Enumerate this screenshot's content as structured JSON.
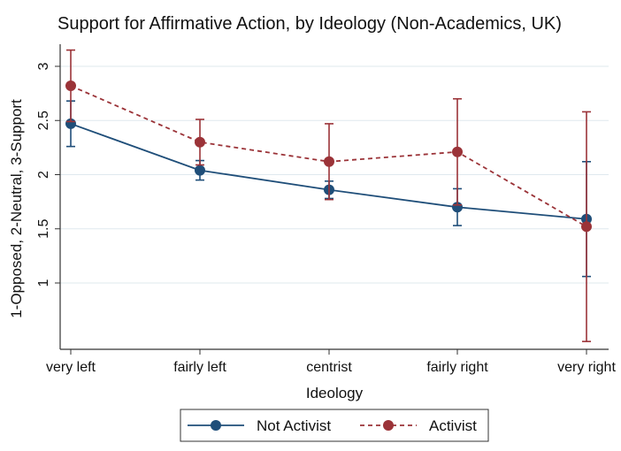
{
  "chart_data": {
    "type": "line",
    "title": "Support for Affirmative Action, by Ideology (Non-Academics, UK)",
    "xlabel": "Ideology",
    "ylabel": "1-Opposed, 2-Neutral, 3-Support",
    "categories": [
      "very left",
      "fairly left",
      "centrist",
      "fairly right",
      "very right"
    ],
    "y_ticks": [
      1,
      1.5,
      2,
      2.5,
      3
    ],
    "y_tick_labels": [
      "1",
      "1.5",
      "2",
      "2.5",
      "3"
    ],
    "ylim": [
      0.4,
      3.2
    ],
    "grid": true,
    "legend_position": "bottom",
    "series": [
      {
        "name": "Not Activist",
        "color": "#1f4e79",
        "line_style": "solid",
        "values": [
          2.47,
          2.04,
          1.86,
          1.7,
          1.59
        ],
        "ci_low": [
          2.26,
          1.95,
          1.78,
          1.53,
          1.06
        ],
        "ci_high": [
          2.68,
          2.13,
          1.94,
          1.87,
          2.12
        ]
      },
      {
        "name": "Activist",
        "color": "#9b3338",
        "line_style": "dashed",
        "values": [
          2.82,
          2.3,
          2.12,
          2.21,
          1.52
        ],
        "ci_low": [
          2.49,
          2.09,
          1.77,
          1.72,
          0.46
        ],
        "ci_high": [
          3.15,
          2.51,
          2.47,
          2.7,
          2.58
        ]
      }
    ]
  }
}
